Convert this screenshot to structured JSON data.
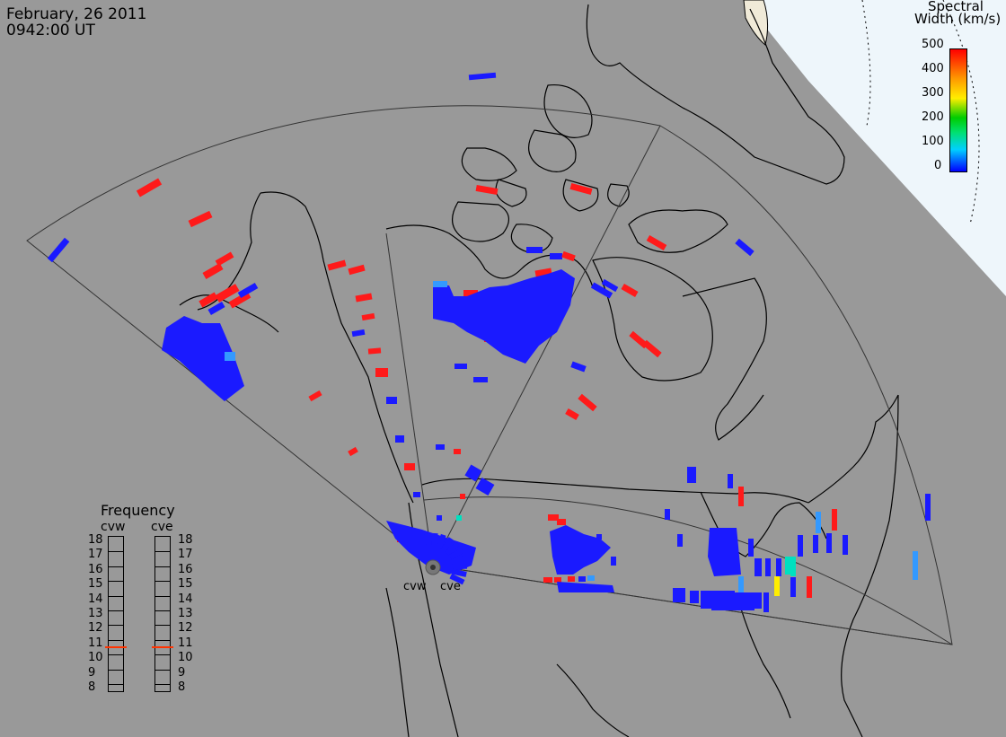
{
  "header": {
    "date": "February, 26 2011",
    "time": "0942:00 UT"
  },
  "colorbar": {
    "title_line1": "Spectral",
    "title_line2": "Width (km/s)",
    "ticks": [
      "500",
      "400",
      "300",
      "200",
      "100",
      "0"
    ],
    "range": [
      0,
      500
    ],
    "colors": [
      "#0000ff",
      "#00e6ff",
      "#00dd00",
      "#ffee00",
      "#ff9900",
      "#ff0000"
    ]
  },
  "frequency_panel": {
    "title": "Frequency",
    "radars": [
      {
        "name": "cvw",
        "selected_mhz": 10.75
      },
      {
        "name": "cve",
        "selected_mhz": 10.75
      }
    ],
    "scale_values": [
      "18",
      "17",
      "16",
      "15",
      "14",
      "13",
      "12",
      "11",
      "10",
      "9",
      "8"
    ],
    "marker_color": "#ff3300"
  },
  "stations": [
    {
      "name": "cvw"
    },
    {
      "name": "cve"
    }
  ],
  "map": {
    "land_color": "#999999",
    "ocean_pole_color": "#eef7fc",
    "outline_color": "#000000"
  }
}
